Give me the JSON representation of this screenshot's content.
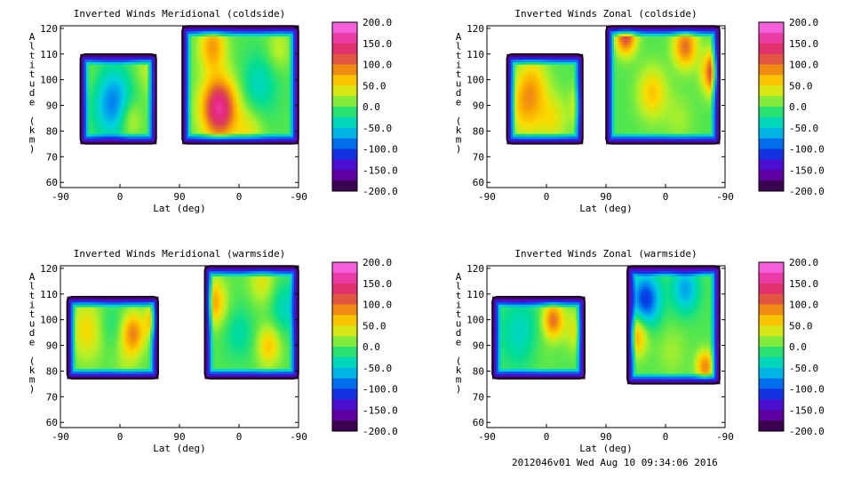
{
  "footer": "2012046v01 Wed Aug 10 09:34:06 2016",
  "chart_data": [
    {
      "type": "heatmap",
      "title": "Inverted Winds Meridional (coldside)",
      "xlabel": "Lat (deg)",
      "ylabel": "Altitude (km)",
      "xticks": [
        "-90",
        "0",
        "90",
        "0",
        "-90"
      ],
      "yticks": [
        "60",
        "70",
        "80",
        "90",
        "100",
        "110",
        "120"
      ],
      "ylim": [
        58,
        121
      ],
      "colorbar_ticks": [
        "200.0",
        "150.0",
        "100.0",
        "50.0",
        "0.0",
        "-50.0",
        "-100.0",
        "-150.0",
        "-200.0"
      ],
      "colorbar_range": [
        -200,
        200
      ],
      "regions": [
        {
          "x0": -60,
          "x1": 55,
          "y0": 75,
          "y1": 110,
          "blobs": [
            [
              -10,
              91,
              -85,
              13
            ],
            [
              15,
              85,
              45,
              8
            ],
            [
              70,
              95,
              80,
              8
            ],
            [
              40,
              104,
              25,
              9
            ],
            [
              -45,
              100,
              10,
              10
            ]
          ]
        },
        {
          "x0": 94,
          "x1": 270,
          "y0": 75,
          "y1": 121,
          "blobs": [
            [
              150,
              89,
              160,
              12
            ],
            [
              140,
              113,
              80,
              9
            ],
            [
              210,
              98,
              -40,
              12
            ],
            [
              240,
              112,
              30,
              8
            ],
            [
              195,
              80,
              40,
              10
            ]
          ]
        }
      ]
    },
    {
      "type": "heatmap",
      "title": "Inverted Winds Zonal (coldside)",
      "xlabel": "Lat (deg)",
      "ylabel": "Altitude (km)",
      "xticks": [
        "-90",
        "0",
        "90",
        "0",
        "-90"
      ],
      "yticks": [
        "60",
        "70",
        "80",
        "90",
        "100",
        "110",
        "120"
      ],
      "ylim": [
        58,
        121
      ],
      "colorbar_ticks": [
        "200.0",
        "150.0",
        "100.0",
        "50.0",
        "0.0",
        "-50.0",
        "-100.0",
        "-150.0",
        "-200.0"
      ],
      "colorbar_range": [
        -200,
        200
      ],
      "regions": [
        {
          "x0": -60,
          "x1": 55,
          "y0": 75,
          "y1": 110,
          "blobs": [
            [
              -30,
              90,
              70,
              12
            ],
            [
              -20,
              100,
              40,
              10
            ],
            [
              60,
              90,
              100,
              8
            ],
            [
              10,
              85,
              40,
              10
            ]
          ]
        },
        {
          "x0": 90,
          "x1": 262,
          "y0": 75,
          "y1": 121,
          "blobs": [
            [
              120,
              117,
              120,
              7
            ],
            [
              210,
              113,
              100,
              8
            ],
            [
              255,
              103,
              140,
              8
            ],
            [
              160,
              95,
              60,
              10
            ],
            [
              200,
              85,
              20,
              10
            ]
          ]
        }
      ]
    },
    {
      "type": "heatmap",
      "title": "Inverted Winds Meridional (warmside)",
      "xlabel": "Lat (deg)",
      "ylabel": "Altitude (km)",
      "xticks": [
        "-90",
        "0",
        "90",
        "0",
        "-90"
      ],
      "yticks": [
        "60",
        "70",
        "80",
        "90",
        "100",
        "110",
        "120"
      ],
      "ylim": [
        58,
        121
      ],
      "colorbar_ticks": [
        "200.0",
        "150.0",
        "100.0",
        "50.0",
        "0.0",
        "-50.0",
        "-100.0",
        "-150.0",
        "-200.0"
      ],
      "colorbar_range": [
        -200,
        200
      ],
      "regions": [
        {
          "x0": -80,
          "x1": 58,
          "y0": 77,
          "y1": 109,
          "blobs": [
            [
              -50,
              96,
              50,
              12
            ],
            [
              20,
              95,
              90,
              8
            ],
            [
              55,
              100,
              120,
              6
            ],
            [
              -15,
              98,
              -20,
              9
            ],
            [
              10,
              85,
              20,
              8
            ]
          ]
        },
        {
          "x0": 128,
          "x1": 270,
          "y0": 77,
          "y1": 121,
          "blobs": [
            [
              140,
              107,
              80,
              9
            ],
            [
              215,
              115,
              40,
              9
            ],
            [
              180,
              95,
              -30,
              10
            ],
            [
              225,
              90,
              60,
              8
            ],
            [
              250,
              105,
              -40,
              10
            ]
          ]
        }
      ]
    },
    {
      "type": "heatmap",
      "title": "Inverted Winds Zonal (warmside)",
      "xlabel": "Lat (deg)",
      "ylabel": "Altitude (km)",
      "xticks": [
        "-90",
        "0",
        "90",
        "0",
        "-90"
      ],
      "yticks": [
        "60",
        "70",
        "80",
        "90",
        "100",
        "110",
        "120"
      ],
      "ylim": [
        58,
        121
      ],
      "colorbar_ticks": [
        "200.0",
        "150.0",
        "100.0",
        "50.0",
        "0.0",
        "-50.0",
        "-100.0",
        "-150.0",
        "-200.0"
      ],
      "colorbar_range": [
        -200,
        200
      ],
      "regions": [
        {
          "x0": -82,
          "x1": 58,
          "y0": 77,
          "y1": 109,
          "blobs": [
            [
              10,
              100,
              100,
              7
            ],
            [
              -40,
              95,
              -40,
              14
            ],
            [
              45,
              96,
              40,
              8
            ],
            [
              -10,
              88,
              10,
              10
            ]
          ]
        },
        {
          "x0": 122,
          "x1": 262,
          "y0": 75,
          "y1": 121,
          "blobs": [
            [
              150,
              108,
              -110,
              10
            ],
            [
              135,
              94,
              80,
              8
            ],
            [
              210,
              112,
              -70,
              9
            ],
            [
              190,
              88,
              20,
              10
            ],
            [
              240,
              82,
              90,
              6
            ]
          ]
        }
      ]
    }
  ]
}
